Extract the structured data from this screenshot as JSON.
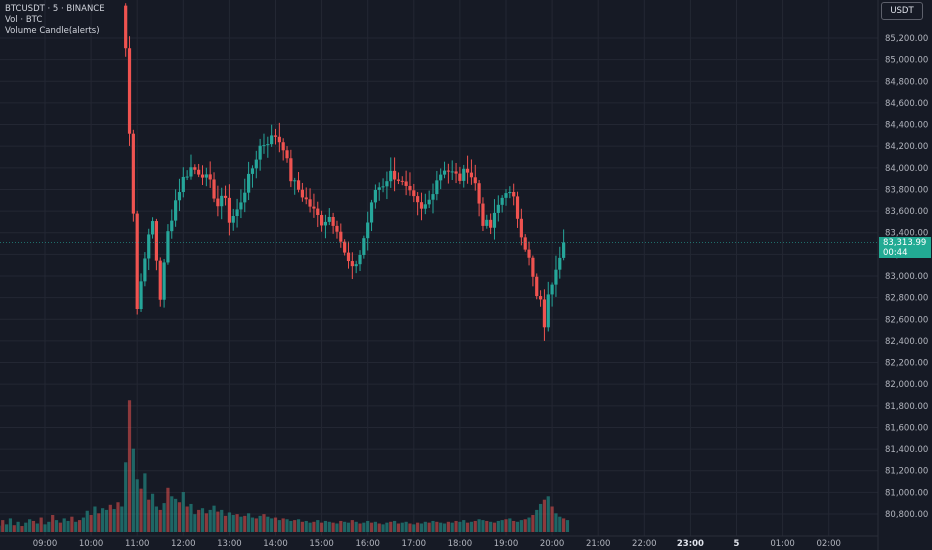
{
  "legend": {
    "symbol": "BTCUSDT · 5 · BINANCE",
    "volume": "Vol · BTC",
    "indicator": "Volume Candle(alerts)"
  },
  "currency_button": "USDT",
  "last_price": {
    "value": "83,313.99",
    "countdown": "00:44"
  },
  "colors": {
    "up": "#26a69a",
    "down": "#ef5350",
    "background": "#161a25",
    "grid": "#232733",
    "axis_text": "#b2b5be",
    "last_price_bg": "#22ab94"
  },
  "chart_data": {
    "type": "candlestick",
    "title": "BTCUSDT · 5 · BINANCE",
    "xlabel": "",
    "ylabel": "",
    "ylim": [
      80700,
      85400
    ],
    "y_ticks": [
      "85,200.00",
      "85,000.00",
      "84,800.00",
      "84,600.00",
      "84,400.00",
      "84,200.00",
      "84,000.00",
      "83,800.00",
      "83,600.00",
      "83,400.00",
      "83,200.00",
      "83,000.00",
      "82,800.00",
      "82,600.00",
      "82,400.00",
      "82,200.00",
      "82,000.00",
      "81,800.00",
      "81,600.00",
      "81,400.00",
      "81,200.00",
      "81,000.00",
      "80,800.00"
    ],
    "x_ticks": [
      "09:00",
      "10:00",
      "11:00",
      "12:00",
      "13:00",
      "14:00",
      "15:00",
      "16:00",
      "17:00",
      "18:00",
      "19:00",
      "20:00",
      "21:00",
      "22:00",
      "23:00",
      "5",
      "01:00",
      "02:00"
    ],
    "bold_x_ticks": [
      "23:00",
      "5"
    ],
    "interval_minutes": 5,
    "first_candle_time": "10:40",
    "close_anchors": [
      [
        0,
        85500
      ],
      [
        1,
        85100
      ],
      [
        3,
        83600
      ],
      [
        4,
        82700
      ],
      [
        6,
        83200
      ],
      [
        8,
        83500
      ],
      [
        10,
        82800
      ],
      [
        12,
        83400
      ],
      [
        14,
        83700
      ],
      [
        16,
        83900
      ],
      [
        18,
        84000
      ],
      [
        21,
        83950
      ],
      [
        23,
        83850
      ],
      [
        25,
        83650
      ],
      [
        27,
        83750
      ],
      [
        28,
        83500
      ],
      [
        30,
        83600
      ],
      [
        32,
        83800
      ],
      [
        34,
        84000
      ],
      [
        36,
        84200
      ],
      [
        38,
        84250
      ],
      [
        40,
        84300
      ],
      [
        42,
        84200
      ],
      [
        44,
        83900
      ],
      [
        46,
        83800
      ],
      [
        48,
        83700
      ],
      [
        50,
        83600
      ],
      [
        52,
        83500
      ],
      [
        54,
        83550
      ],
      [
        56,
        83450
      ],
      [
        58,
        83200
      ],
      [
        60,
        83050
      ],
      [
        62,
        83200
      ],
      [
        64,
        83500
      ],
      [
        66,
        83800
      ],
      [
        68,
        83850
      ],
      [
        70,
        83950
      ],
      [
        72,
        83900
      ],
      [
        74,
        83800
      ],
      [
        76,
        83700
      ],
      [
        78,
        83600
      ],
      [
        80,
        83700
      ],
      [
        82,
        83900
      ],
      [
        84,
        84000
      ],
      [
        86,
        83950
      ],
      [
        88,
        83900
      ],
      [
        90,
        84000
      ],
      [
        92,
        83850
      ],
      [
        94,
        83500
      ],
      [
        96,
        83450
      ],
      [
        98,
        83650
      ],
      [
        100,
        83800
      ],
      [
        102,
        83700
      ],
      [
        104,
        83400
      ],
      [
        106,
        83150
      ],
      [
        108,
        82800
      ],
      [
        109,
        82750
      ],
      [
        110,
        82550
      ],
      [
        111,
        82800
      ],
      [
        113,
        83100
      ],
      [
        115,
        83310
      ]
    ],
    "volume_values": [
      820,
      1550,
      980,
      620,
      510,
      690,
      380,
      450,
      300,
      260,
      340,
      520,
      420,
      390,
      350,
      470,
      300,
      330,
      210,
      260,
      280,
      220,
      260,
      310,
      240,
      260,
      190,
      230,
      200,
      210,
      180,
      190,
      220,
      170,
      160,
      190,
      210,
      180,
      160,
      170,
      140,
      160,
      150,
      130,
      140,
      150,
      120,
      130,
      110,
      120,
      140,
      110,
      130,
      120,
      110,
      100,
      130,
      120,
      110,
      140,
      120,
      100,
      110,
      130,
      110,
      120,
      100,
      90,
      110,
      120,
      130,
      100,
      110,
      120,
      100,
      90,
      110,
      100,
      120,
      110,
      130,
      120,
      110,
      100,
      120,
      110,
      130,
      120,
      140,
      110,
      120,
      130,
      150,
      140,
      130,
      120,
      110,
      130,
      140,
      150,
      160,
      130,
      120,
      140,
      150,
      170,
      200,
      260,
      330,
      380,
      420,
      300,
      220,
      180,
      160,
      140
    ],
    "pre_volume_values": [
      120,
      80,
      60,
      90,
      70,
      110,
      95,
      130,
      85,
      100,
      75,
      140,
      90,
      160,
      80,
      120,
      70,
      110,
      150,
      130,
      100,
      170,
      90,
      120,
      200,
      140,
      110,
      160,
      130,
      180,
      120,
      140,
      170,
      250,
      200,
      300,
      220,
      280,
      260,
      320,
      270,
      350,
      300
    ]
  }
}
